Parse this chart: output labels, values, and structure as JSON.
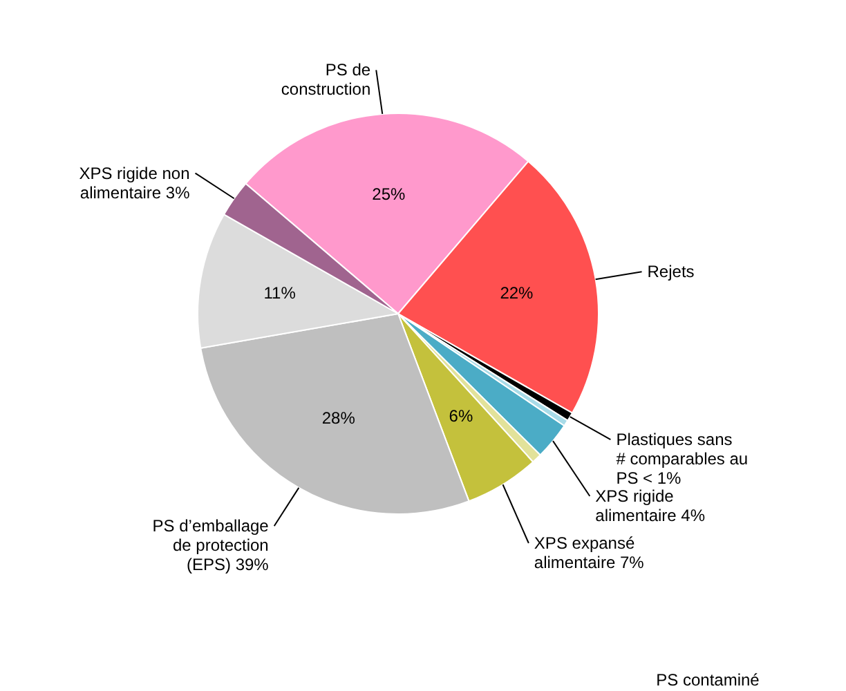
{
  "chart_data": {
    "type": "pie",
    "categories": [
      "PS de construction",
      "Rejets",
      "Plastiques sans # comparables au PS < 1%",
      null,
      "XPS rigide alimentaire 4%",
      null,
      "XPS expansé alimentaire 7%",
      "PS d’emballage de protection (EPS) 39%",
      null,
      "XPS rigide non alimentaire 3%"
    ],
    "values": [
      25,
      22,
      0.7,
      0.5,
      3,
      0.8,
      6,
      28,
      11,
      3
    ],
    "colors": [
      "#ff99cc",
      "#ff5050",
      "#000000",
      "#a8dbe8",
      "#4bacc6",
      "#e2e29a",
      "#c4c13c",
      "#bfbfbf",
      "#dcdcdc",
      "#a0648f"
    ],
    "value_labels": [
      "25%",
      "22%",
      null,
      null,
      null,
      null,
      "6%",
      "28%",
      "11%",
      null
    ],
    "annotations": [
      "PS contaminé"
    ]
  }
}
